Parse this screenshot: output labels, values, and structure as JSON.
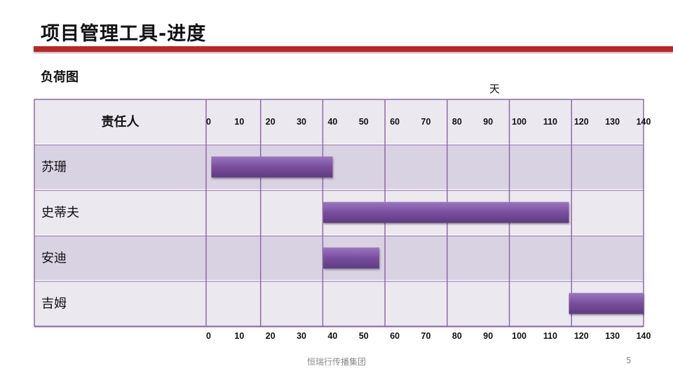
{
  "title": "项目管理工具-进度",
  "subtitle": "负荷图",
  "unit_label": "天",
  "footer": "恒瑞行传播集团",
  "page_number": "5",
  "colors": {
    "accent_rule": "#b22a2a",
    "bar": "#7a4f9e",
    "grid_line": "#8e6aa8",
    "header_bg": "#ece8ef",
    "row_dark": "#d9d2e2",
    "row_light": "#ece8ef"
  },
  "chart_data": {
    "type": "gantt",
    "header_label": "责任人",
    "xlim": [
      0,
      140
    ],
    "ticks": [
      0,
      10,
      20,
      30,
      40,
      50,
      60,
      70,
      80,
      90,
      100,
      110,
      120,
      130,
      140
    ],
    "major_gridlines": [
      20,
      40,
      60,
      80,
      100,
      120
    ],
    "rows": [
      {
        "name": "苏珊",
        "start": 1,
        "end": 40
      },
      {
        "name": "史蒂夫",
        "start": 37,
        "end": 116
      },
      {
        "name": "安迪",
        "start": 37,
        "end": 55
      },
      {
        "name": "吉姆",
        "start": 116,
        "end": 140
      }
    ]
  }
}
